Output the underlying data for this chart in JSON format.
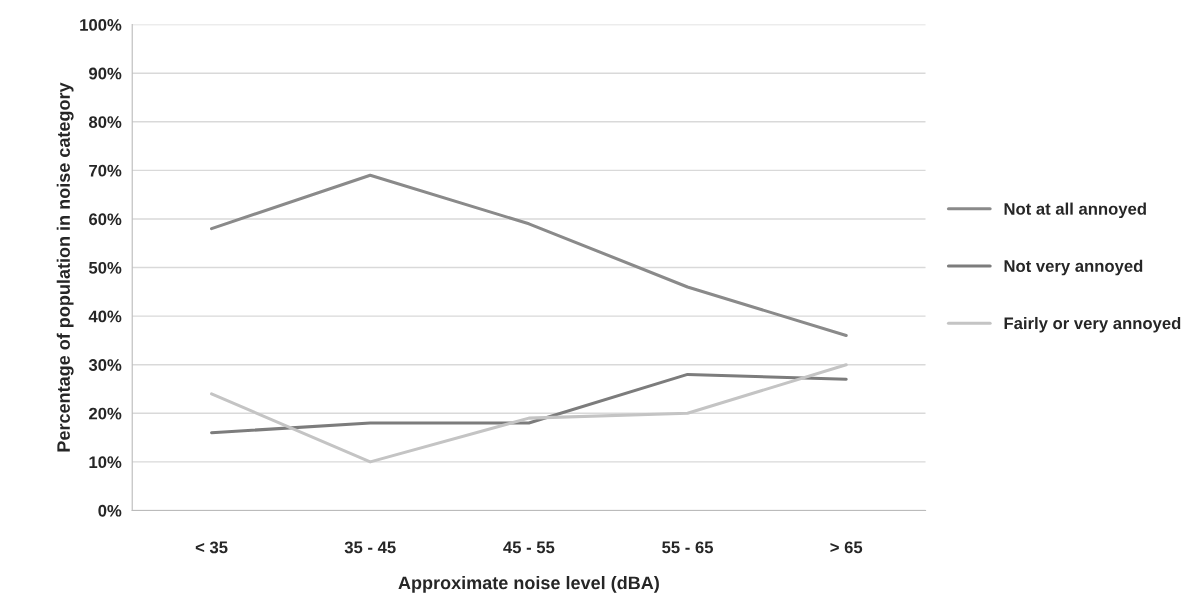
{
  "chart_data": {
    "type": "line",
    "xlabel": "Approximate noise level (dBA)",
    "ylabel": "Percentage of population in noise category",
    "categories": [
      "< 35",
      "35 - 45",
      "45 - 55",
      "55 - 65",
      "> 65"
    ],
    "series": [
      {
        "name": "Not at all annoyed",
        "color": "#8a8a8a",
        "values": [
          58,
          69,
          59,
          46,
          36
        ]
      },
      {
        "name": "Not very annoyed",
        "color": "#7c7c7c",
        "values": [
          16,
          18,
          18,
          28,
          27
        ]
      },
      {
        "name": "Fairly or very annoyed",
        "color": "#c4c4c4",
        "values": [
          24,
          10,
          19,
          20,
          30
        ]
      }
    ],
    "ylim": [
      0,
      100
    ],
    "yticks": [
      {
        "value": 0,
        "label": "0%"
      },
      {
        "value": 10,
        "label": "10%"
      },
      {
        "value": 20,
        "label": "20%"
      },
      {
        "value": 30,
        "label": "30%"
      },
      {
        "value": 40,
        "label": "40%"
      },
      {
        "value": 50,
        "label": "50%"
      },
      {
        "value": 60,
        "label": "60%"
      },
      {
        "value": 70,
        "label": "70%"
      },
      {
        "value": 80,
        "label": "80%"
      },
      {
        "value": 90,
        "label": "90%"
      },
      {
        "value": 100,
        "label": "100%"
      }
    ],
    "grid": "y",
    "legend": "right",
    "marker": "none",
    "line_style": "solid"
  }
}
